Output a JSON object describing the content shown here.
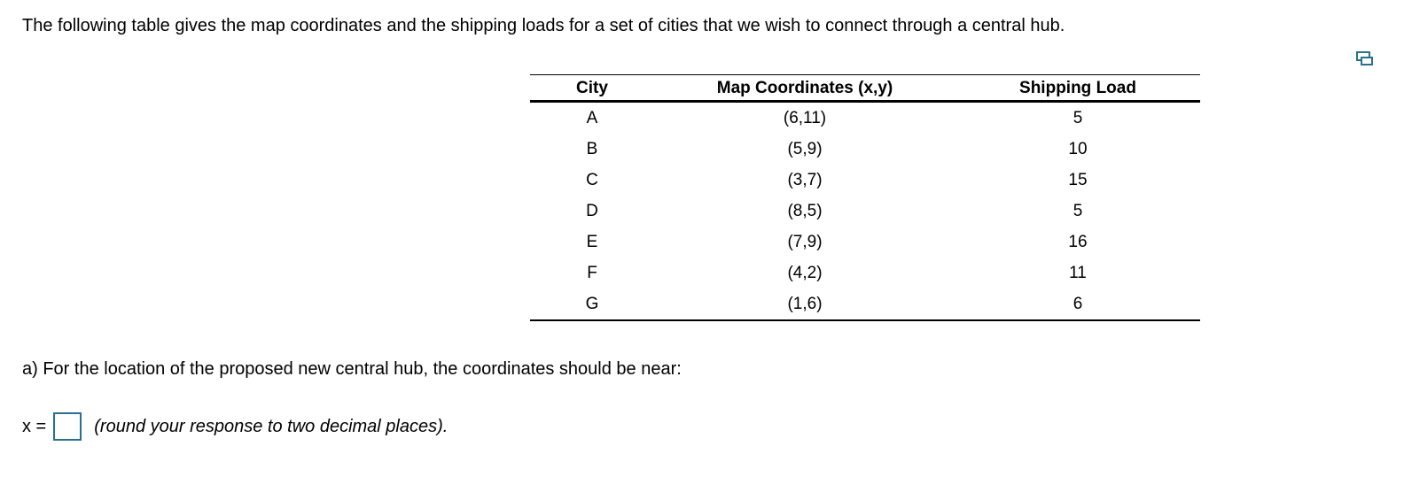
{
  "intro": "The following table gives the map coordinates and the shipping loads for a set of cities that we wish to connect through a central hub.",
  "icon": "copy-table-icon",
  "table": {
    "headers": [
      "City",
      "Map Coordinates (x,y)",
      "Shipping Load"
    ],
    "rows": [
      [
        "A",
        "(6,11)",
        "5"
      ],
      [
        "B",
        "(5,9)",
        "10"
      ],
      [
        "C",
        "(3,7)",
        "15"
      ],
      [
        "D",
        "(8,5)",
        "5"
      ],
      [
        "E",
        "(7,9)",
        "16"
      ],
      [
        "F",
        "(4,2)",
        "11"
      ],
      [
        "G",
        "(1,6)",
        "6"
      ]
    ]
  },
  "question": "a) For the location of the proposed new central hub, the coordinates should be near:",
  "answer": {
    "label": "x =",
    "value": "",
    "hint": "(round your response to two decimal places)."
  },
  "accent": "#2a6f8e"
}
